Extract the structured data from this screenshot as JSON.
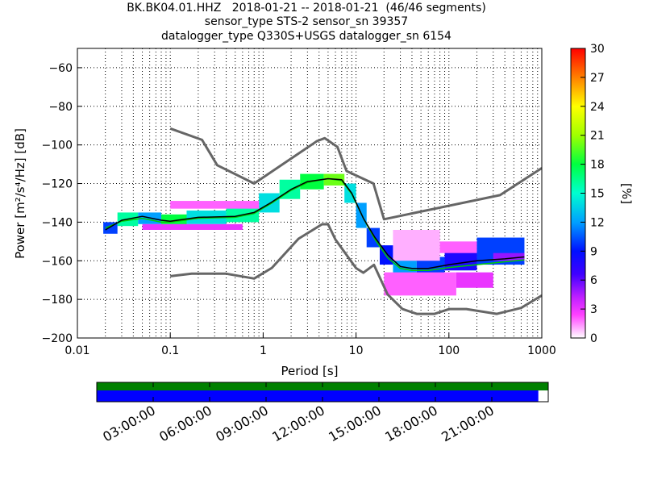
{
  "title": {
    "line1": "BK.BK04.01.HHZ   2018-01-21 -- 2018-01-21  (46/46 segments)",
    "line2": "sensor_type STS-2 sensor_sn 39357",
    "line3": "datalogger_type Q330S+USGS datalogger_sn 6154"
  },
  "chart_data": {
    "type": "heatmap",
    "xlabel": "Period [s]",
    "ylabel": "Power [m²/s⁴/Hz] [dB]",
    "x_scale": "log",
    "xlim": [
      0.01,
      1000
    ],
    "ylim": [
      -200,
      -50
    ],
    "x_ticks": [
      {
        "v": 0.01,
        "label": "0.01"
      },
      {
        "v": 0.1,
        "label": "0.1"
      },
      {
        "v": 1,
        "label": "1"
      },
      {
        "v": 10,
        "label": "10"
      },
      {
        "v": 100,
        "label": "100"
      },
      {
        "v": 1000,
        "label": "1000"
      }
    ],
    "y_ticks": [
      -60,
      -80,
      -100,
      -120,
      -140,
      -160,
      -180,
      -200
    ],
    "colorbar": {
      "label": "[%]",
      "min": 0,
      "max": 30,
      "ticks": [
        0,
        3,
        6,
        9,
        12,
        15,
        18,
        21,
        24,
        27,
        30
      ]
    },
    "nhnm": [
      [
        0.1,
        -91.5
      ],
      [
        0.22,
        -97.4
      ],
      [
        0.32,
        -110.5
      ],
      [
        0.8,
        -120
      ],
      [
        3.8,
        -98
      ],
      [
        4.6,
        -96.5
      ],
      [
        6.3,
        -101
      ],
      [
        7.9,
        -113.5
      ],
      [
        15.4,
        -120
      ],
      [
        20,
        -138.5
      ],
      [
        354.8,
        -126
      ],
      [
        1000,
        -112
      ]
    ],
    "nlnm": [
      [
        0.1,
        -168
      ],
      [
        0.17,
        -166.7
      ],
      [
        0.4,
        -166.7
      ],
      [
        0.8,
        -169.2
      ],
      [
        1.24,
        -163.7
      ],
      [
        2.4,
        -148.6
      ],
      [
        4.3,
        -141.1
      ],
      [
        5,
        -141.1
      ],
      [
        6,
        -149
      ],
      [
        10,
        -163.8
      ],
      [
        12,
        -166.2
      ],
      [
        15.6,
        -162.1
      ],
      [
        21.9,
        -177.5
      ],
      [
        31.6,
        -185
      ],
      [
        45,
        -187.5
      ],
      [
        70,
        -187.5
      ],
      [
        101,
        -185
      ],
      [
        154,
        -185
      ],
      [
        328,
        -187.5
      ],
      [
        600,
        -184.4
      ],
      [
        1000,
        -178
      ]
    ],
    "mode": [
      [
        0.02,
        -144
      ],
      [
        0.03,
        -139
      ],
      [
        0.05,
        -137
      ],
      [
        0.08,
        -139
      ],
      [
        0.1,
        -139.5
      ],
      [
        0.2,
        -137.5
      ],
      [
        0.5,
        -137
      ],
      [
        0.8,
        -135
      ],
      [
        1.2,
        -130
      ],
      [
        2,
        -123
      ],
      [
        3,
        -119
      ],
      [
        5,
        -117.5
      ],
      [
        7,
        -118
      ],
      [
        9,
        -125
      ],
      [
        12,
        -138
      ],
      [
        16,
        -148
      ],
      [
        22,
        -157
      ],
      [
        30,
        -163
      ],
      [
        40,
        -164
      ],
      [
        60,
        -164
      ],
      [
        100,
        -162
      ],
      [
        200,
        -160
      ],
      [
        400,
        -159
      ],
      [
        650,
        -158
      ]
    ],
    "mean": [
      [
        0.02,
        -143
      ],
      [
        0.03,
        -139.5
      ],
      [
        0.05,
        -138
      ],
      [
        0.08,
        -140
      ],
      [
        0.1,
        -140
      ],
      [
        0.2,
        -138
      ],
      [
        0.5,
        -137.5
      ],
      [
        0.8,
        -135.5
      ],
      [
        1.2,
        -130.5
      ],
      [
        2,
        -123.5
      ],
      [
        3,
        -119.5
      ],
      [
        5,
        -117.5
      ],
      [
        7,
        -118.5
      ],
      [
        9,
        -125.5
      ],
      [
        12,
        -138
      ],
      [
        16,
        -149
      ],
      [
        22,
        -158.5
      ],
      [
        30,
        -164
      ],
      [
        40,
        -165
      ],
      [
        60,
        -165
      ],
      [
        100,
        -163.5
      ],
      [
        200,
        -162
      ],
      [
        400,
        -160.5
      ],
      [
        650,
        -159.5
      ]
    ],
    "percent_bands": [
      {
        "x0": 0.019,
        "x1": 0.027,
        "y0": -146,
        "y1": -140,
        "pct": 10
      },
      {
        "x0": 0.027,
        "x1": 0.045,
        "y0": -142,
        "y1": -135,
        "pct": 16
      },
      {
        "x0": 0.045,
        "x1": 0.08,
        "y0": -141,
        "y1": -135,
        "pct": 12
      },
      {
        "x0": 0.08,
        "x1": 0.15,
        "y0": -142,
        "y1": -136,
        "pct": 18
      },
      {
        "x0": 0.15,
        "x1": 0.4,
        "y0": -141,
        "y1": -134,
        "pct": 14
      },
      {
        "x0": 0.4,
        "x1": 0.9,
        "y0": -140,
        "y1": -132,
        "pct": 16
      },
      {
        "x0": 0.9,
        "x1": 1.5,
        "y0": -135,
        "y1": -125,
        "pct": 14
      },
      {
        "x0": 1.5,
        "x1": 2.5,
        "y0": -128,
        "y1": -118,
        "pct": 16
      },
      {
        "x0": 2.5,
        "x1": 4.5,
        "y0": -123,
        "y1": -115,
        "pct": 18
      },
      {
        "x0": 4.5,
        "x1": 7.5,
        "y0": -121,
        "y1": -115,
        "pct": 20
      },
      {
        "x0": 7.5,
        "x1": 10,
        "y0": -130,
        "y1": -120,
        "pct": 14
      },
      {
        "x0": 10,
        "x1": 13,
        "y0": -143,
        "y1": -130,
        "pct": 12
      },
      {
        "x0": 13,
        "x1": 18,
        "y0": -153,
        "y1": -143,
        "pct": 10
      },
      {
        "x0": 18,
        "x1": 25,
        "y0": -162,
        "y1": -152,
        "pct": 9
      },
      {
        "x0": 25,
        "x1": 45,
        "y0": -167,
        "y1": -158,
        "pct": 12
      },
      {
        "x0": 45,
        "x1": 90,
        "y0": -167,
        "y1": -158,
        "pct": 10
      },
      {
        "x0": 90,
        "x1": 200,
        "y0": -165,
        "y1": -155,
        "pct": 8
      },
      {
        "x0": 200,
        "x1": 650,
        "y0": -162,
        "y1": -148,
        "pct": 10
      },
      {
        "x0": 0.1,
        "x1": 0.9,
        "y0": -133,
        "y1": -129,
        "pct": 2
      },
      {
        "x0": 0.05,
        "x1": 0.6,
        "y0": -144,
        "y1": -141,
        "pct": 3
      },
      {
        "x0": 20,
        "x1": 120,
        "y0": -178,
        "y1": -166,
        "pct": 2
      },
      {
        "x0": 25,
        "x1": 80,
        "y0": -160,
        "y1": -144,
        "pct": 1
      },
      {
        "x0": 120,
        "x1": 300,
        "y0": -174,
        "y1": -166,
        "pct": 3
      },
      {
        "x0": 80,
        "x1": 200,
        "y0": -156,
        "y1": -150,
        "pct": 2
      },
      {
        "x0": 300,
        "x1": 650,
        "y0": -160,
        "y1": -156,
        "pct": 5
      }
    ]
  },
  "timeline": {
    "labels": [
      "03:00:00",
      "06:00:00",
      "09:00:00",
      "12:00:00",
      "15:00:00",
      "18:00:00",
      "21:00:00"
    ],
    "top_bar_color": "#008000",
    "bottom_bar_color": "#0000ff",
    "coverage_fraction": 0.978
  },
  "colors": {
    "noise_model": "#666666",
    "mode_line": "#000000",
    "mean_line": "#00cc00"
  }
}
